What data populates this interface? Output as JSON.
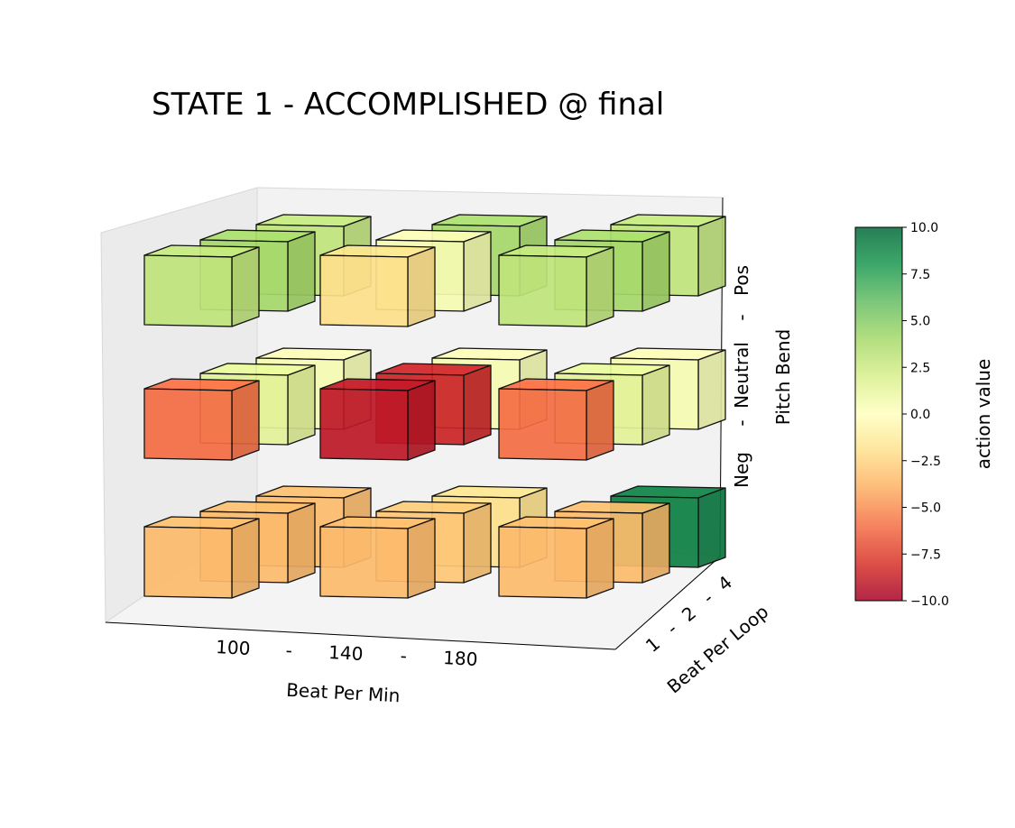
{
  "chart_data": {
    "type": "bar3d",
    "title": "STATE 1 - ACCOMPLISHED @ final",
    "x_axis": {
      "label": "Beat Per Min",
      "ticks": [
        "100",
        "-",
        "140",
        "-",
        "180"
      ],
      "categories": [
        "100",
        "140",
        "180"
      ]
    },
    "y_axis": {
      "label": "Beat Per Loop",
      "ticks": [
        "1",
        "-",
        "2",
        "-",
        "4"
      ],
      "categories": [
        "1",
        "2",
        "4"
      ]
    },
    "z_axis": {
      "label": "Pitch Bend",
      "ticks": [
        "Neg",
        "-",
        "Neutral",
        "-",
        "Pos"
      ],
      "categories": [
        "Neg",
        "Neutral",
        "Pos"
      ]
    },
    "colorbar": {
      "label": "action value",
      "range": [
        -10,
        10
      ],
      "ticks": [
        "10.0",
        "7.5",
        "5.0",
        "2.5",
        "0.0",
        "−2.5",
        "−5.0",
        "−7.5",
        "−10.0"
      ],
      "tick_values": [
        10,
        7.5,
        5,
        2.5,
        0,
        -2.5,
        -5,
        -7.5,
        -10
      ],
      "colormap": [
        "#a50026",
        "#d73027",
        "#f46d43",
        "#fdae61",
        "#fee08b",
        "#ffffbf",
        "#d9ef8b",
        "#a6d96a",
        "#66bd63",
        "#1a9850",
        "#006837"
      ]
    },
    "values": [
      {
        "bpm": "100",
        "loop": "1",
        "pitch": "Neg",
        "value": -3.5
      },
      {
        "bpm": "100",
        "loop": "2",
        "pitch": "Neg",
        "value": -3.5
      },
      {
        "bpm": "100",
        "loop": "4",
        "pitch": "Neg",
        "value": -3.5
      },
      {
        "bpm": "140",
        "loop": "1",
        "pitch": "Neg",
        "value": -3.5
      },
      {
        "bpm": "140",
        "loop": "2",
        "pitch": "Neg",
        "value": -3.0
      },
      {
        "bpm": "140",
        "loop": "4",
        "pitch": "Neg",
        "value": -2.0
      },
      {
        "bpm": "180",
        "loop": "1",
        "pitch": "Neg",
        "value": -3.5
      },
      {
        "bpm": "180",
        "loop": "2",
        "pitch": "Neg",
        "value": -3.5
      },
      {
        "bpm": "180",
        "loop": "4",
        "pitch": "Neg",
        "value": 9.0
      },
      {
        "bpm": "100",
        "loop": "1",
        "pitch": "Neutral",
        "value": -6.0
      },
      {
        "bpm": "100",
        "loop": "2",
        "pitch": "Neutral",
        "value": 1.5
      },
      {
        "bpm": "100",
        "loop": "4",
        "pitch": "Neutral",
        "value": 0.5
      },
      {
        "bpm": "140",
        "loop": "1",
        "pitch": "Neutral",
        "value": -9.0
      },
      {
        "bpm": "140",
        "loop": "2",
        "pitch": "Neutral",
        "value": -8.5
      },
      {
        "bpm": "140",
        "loop": "4",
        "pitch": "Neutral",
        "value": 0.5
      },
      {
        "bpm": "180",
        "loop": "1",
        "pitch": "Neutral",
        "value": -6.0
      },
      {
        "bpm": "180",
        "loop": "2",
        "pitch": "Neutral",
        "value": 1.5
      },
      {
        "bpm": "180",
        "loop": "4",
        "pitch": "Neutral",
        "value": 0.5
      },
      {
        "bpm": "100",
        "loop": "1",
        "pitch": "Pos",
        "value": 3.0
      },
      {
        "bpm": "100",
        "loop": "2",
        "pitch": "Pos",
        "value": 4.0
      },
      {
        "bpm": "100",
        "loop": "4",
        "pitch": "Pos",
        "value": 3.0
      },
      {
        "bpm": "140",
        "loop": "1",
        "pitch": "Pos",
        "value": -2.0
      },
      {
        "bpm": "140",
        "loop": "2",
        "pitch": "Pos",
        "value": 0.5
      },
      {
        "bpm": "140",
        "loop": "4",
        "pitch": "Pos",
        "value": 4.0
      },
      {
        "bpm": "180",
        "loop": "1",
        "pitch": "Pos",
        "value": 3.0
      },
      {
        "bpm": "180",
        "loop": "2",
        "pitch": "Pos",
        "value": 4.0
      },
      {
        "bpm": "180",
        "loop": "4",
        "pitch": "Pos",
        "value": 3.0
      }
    ]
  }
}
